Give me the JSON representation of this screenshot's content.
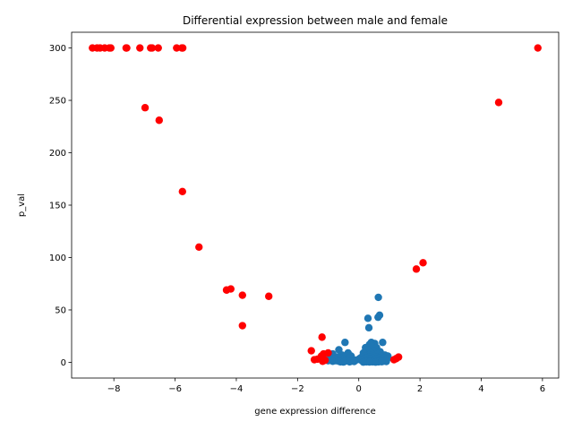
{
  "chart_data": {
    "type": "scatter",
    "title": "Differential expression between male and female",
    "xlabel": "gene expression difference",
    "ylabel": "p_val",
    "xlim": [
      -9.38,
      6.53
    ],
    "ylim": [
      -15,
      315
    ],
    "xticks": [
      -8,
      -6,
      -4,
      -2,
      0,
      2,
      4,
      6
    ],
    "yticks": [
      0,
      50,
      100,
      150,
      200,
      250,
      300
    ],
    "grid": false,
    "legend": "none",
    "series": [
      {
        "color": "#1f77b4",
        "points": [
          [
            0.64,
            62
          ],
          [
            0.68,
            45
          ],
          [
            0.63,
            43
          ],
          [
            0.3,
            42
          ],
          [
            0.33,
            33
          ],
          [
            -0.45,
            19
          ],
          [
            0.41,
            19
          ],
          [
            0.52,
            18
          ],
          [
            0.78,
            19
          ],
          [
            0.35,
            17
          ],
          [
            0.22,
            14
          ],
          [
            0.45,
            15
          ],
          [
            0.58,
            14
          ],
          [
            -0.65,
            12
          ],
          [
            0.28,
            12
          ],
          [
            0.5,
            11
          ],
          [
            0.7,
            10
          ],
          [
            -0.35,
            9
          ],
          [
            0.15,
            9
          ],
          [
            0.4,
            9
          ],
          [
            0.62,
            8
          ],
          [
            -0.85,
            8
          ],
          [
            0.85,
            7
          ],
          [
            -0.55,
            7
          ],
          [
            0.33,
            7
          ],
          [
            -0.25,
            6
          ],
          [
            0.2,
            6
          ],
          [
            0.48,
            6
          ],
          [
            0.72,
            6
          ],
          [
            0.95,
            6
          ],
          [
            -0.7,
            5
          ],
          [
            -0.45,
            5
          ],
          [
            0.1,
            5
          ],
          [
            0.36,
            5
          ],
          [
            0.56,
            5
          ],
          [
            -0.95,
            4
          ],
          [
            -0.6,
            4
          ],
          [
            -0.3,
            4
          ],
          [
            0.05,
            4
          ],
          [
            0.25,
            4
          ],
          [
            0.45,
            4
          ],
          [
            0.65,
            4
          ],
          [
            0.82,
            4
          ],
          [
            -0.8,
            3
          ],
          [
            -0.5,
            3
          ],
          [
            -0.2,
            3
          ],
          [
            0.0,
            3
          ],
          [
            0.18,
            3
          ],
          [
            0.38,
            3
          ],
          [
            0.58,
            3
          ],
          [
            0.76,
            3
          ],
          [
            0.92,
            3
          ],
          [
            -0.9,
            2
          ],
          [
            -0.7,
            2
          ],
          [
            -0.4,
            2
          ],
          [
            -0.1,
            2
          ],
          [
            0.08,
            2
          ],
          [
            0.28,
            2
          ],
          [
            0.48,
            2
          ],
          [
            0.68,
            2
          ],
          [
            0.88,
            2
          ],
          [
            -1.0,
            1.5
          ],
          [
            -0.75,
            1.5
          ],
          [
            -0.55,
            1.5
          ],
          [
            -0.35,
            1.5
          ],
          [
            -0.15,
            1.5
          ],
          [
            0.12,
            1.5
          ],
          [
            0.32,
            1.5
          ],
          [
            0.52,
            1.5
          ],
          [
            0.72,
            1.5
          ],
          [
            -0.85,
            1
          ],
          [
            -0.65,
            1
          ],
          [
            -0.45,
            1
          ],
          [
            -0.25,
            1
          ],
          [
            0.2,
            1
          ],
          [
            0.4,
            1
          ],
          [
            0.6,
            1
          ],
          [
            0.8,
            1
          ],
          [
            -0.6,
            0.5
          ],
          [
            -0.3,
            0.5
          ],
          [
            0.25,
            0.5
          ],
          [
            0.45,
            0.5
          ],
          [
            0.65,
            0.5
          ],
          [
            0.35,
            0.3
          ],
          [
            -0.5,
            0.3
          ],
          [
            0.55,
            0.2
          ],
          [
            0.15,
            0.2
          ],
          [
            -0.15,
            0.8
          ],
          [
            0.9,
            0.8
          ],
          [
            0.75,
            0.6
          ]
        ]
      },
      {
        "color": "#ff0000",
        "points": [
          [
            -8.7,
            300
          ],
          [
            -8.55,
            300
          ],
          [
            -8.45,
            300
          ],
          [
            -8.3,
            300
          ],
          [
            -8.15,
            300
          ],
          [
            -8.1,
            300
          ],
          [
            -7.6,
            300
          ],
          [
            -7.58,
            300
          ],
          [
            -7.15,
            300
          ],
          [
            -6.8,
            300
          ],
          [
            -6.75,
            300
          ],
          [
            -6.55,
            300
          ],
          [
            -5.95,
            300
          ],
          [
            -5.78,
            300
          ],
          [
            -5.75,
            300
          ],
          [
            5.85,
            300
          ],
          [
            4.57,
            248
          ],
          [
            -6.98,
            243
          ],
          [
            -6.52,
            231
          ],
          [
            -5.76,
            163
          ],
          [
            -5.22,
            110
          ],
          [
            2.1,
            95
          ],
          [
            1.88,
            89
          ],
          [
            -4.18,
            70
          ],
          [
            -4.32,
            69
          ],
          [
            -3.8,
            64
          ],
          [
            -2.94,
            63
          ],
          [
            -3.8,
            35
          ],
          [
            -1.2,
            24
          ],
          [
            -1.55,
            11
          ],
          [
            -1.0,
            9
          ],
          [
            -1.15,
            8
          ],
          [
            -1.22,
            6
          ],
          [
            1.3,
            5
          ],
          [
            -1.25,
            4
          ],
          [
            1.22,
            3.5
          ],
          [
            -1.35,
            3
          ],
          [
            -1.45,
            2.5
          ],
          [
            1.15,
            2.5
          ],
          [
            -1.1,
            2
          ],
          [
            -1.18,
            1
          ]
        ]
      }
    ]
  }
}
